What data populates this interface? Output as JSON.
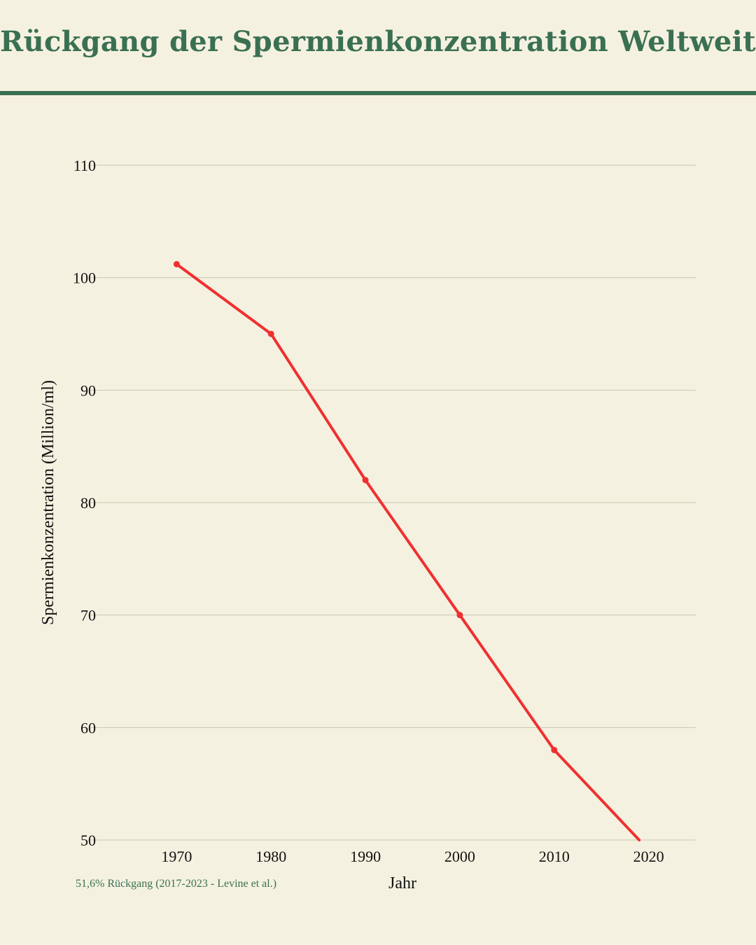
{
  "header": {
    "title": "Rückgang der Spermienkonzentration Weltweit"
  },
  "colors": {
    "accent": "#3a7052",
    "background": "#f5f1e0",
    "line": "#f03030",
    "grid": "#c9c6b2"
  },
  "chart_data": {
    "type": "line",
    "title": "Rückgang der Spermienkonzentration Weltweit",
    "xlabel": "Jahr",
    "ylabel": "Spermienkonzentration (Million/ml)",
    "x_ticks": [
      "1970",
      "1980",
      "1990",
      "2000",
      "2010",
      "2020"
    ],
    "y_ticks": [
      "50",
      "60",
      "70",
      "80",
      "90",
      "100",
      "110"
    ],
    "xlim": [
      1963,
      2025
    ],
    "ylim": [
      50,
      110
    ],
    "grid": true,
    "series": [
      {
        "x": [
          1970,
          1980,
          1990,
          2000,
          2010,
          2019
        ],
        "y": [
          101.2,
          95,
          82,
          70,
          58,
          50
        ]
      }
    ],
    "annotation": "51,6% Rückgang (2017-2023 - Levine et al.)"
  }
}
